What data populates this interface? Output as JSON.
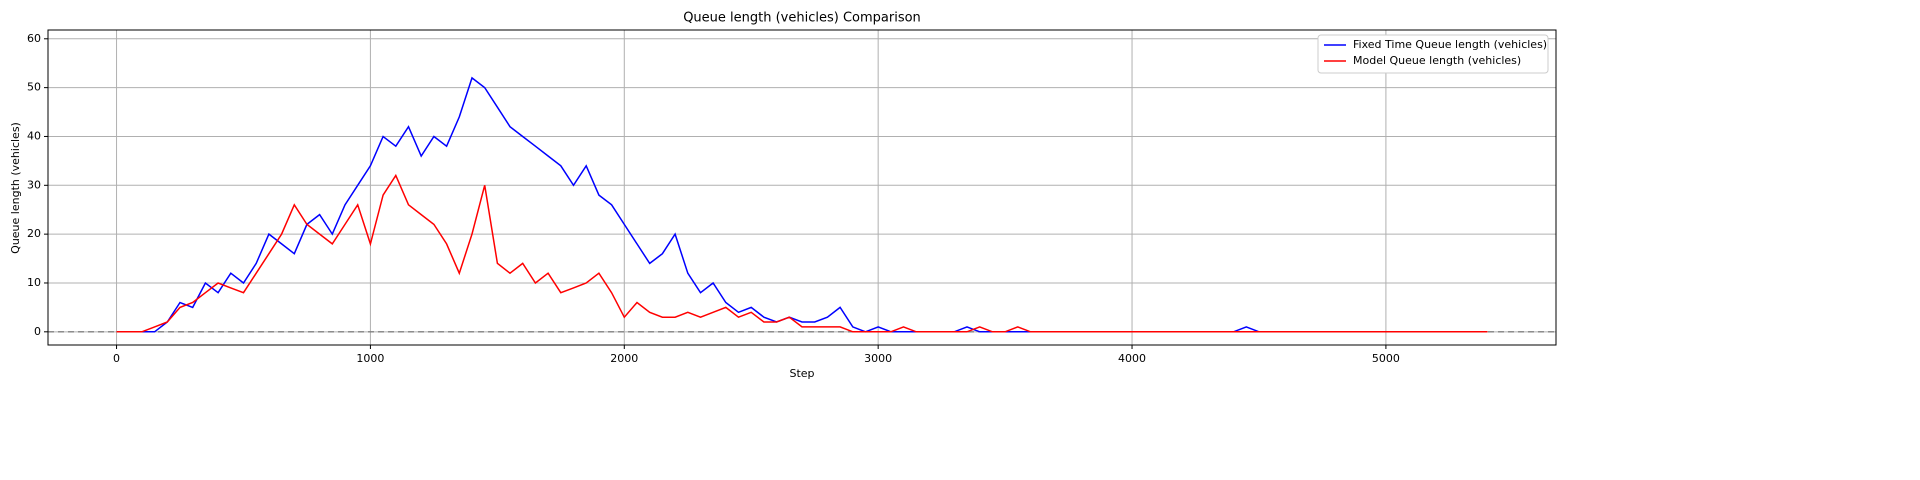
{
  "chart_data": {
    "type": "line",
    "title": "Queue length (vehicles) Comparison",
    "x_label": "Step",
    "y_label": "Queue length (vehicles)",
    "x": [
      0,
      50,
      100,
      150,
      200,
      250,
      300,
      350,
      400,
      450,
      500,
      550,
      600,
      650,
      700,
      750,
      800,
      850,
      900,
      950,
      1000,
      1050,
      1100,
      1150,
      1200,
      1250,
      1300,
      1350,
      1400,
      1450,
      1500,
      1550,
      1600,
      1650,
      1700,
      1750,
      1800,
      1850,
      1900,
      1950,
      2000,
      2050,
      2100,
      2150,
      2200,
      2250,
      2300,
      2350,
      2400,
      2450,
      2500,
      2550,
      2600,
      2650,
      2700,
      2750,
      2800,
      2850,
      2900,
      2950,
      3000,
      3050,
      3100,
      3150,
      3200,
      3250,
      3300,
      3350,
      3400,
      3450,
      3500,
      3550,
      3600,
      3650,
      3700,
      3750,
      3800,
      3850,
      3900,
      3950,
      4000,
      4050,
      4100,
      4150,
      4200,
      4250,
      4300,
      4350,
      4400,
      4450,
      4500,
      4550,
      4600,
      4650,
      4700,
      4750,
      4800,
      4850,
      4900,
      4950,
      5000,
      5050,
      5100,
      5150,
      5200,
      5250,
      5300,
      5350,
      5400
    ],
    "series": [
      {
        "name": "Fixed Time Queue length (vehicles)",
        "color": "#0000ff",
        "values": [
          0,
          0,
          0,
          0,
          2,
          6,
          5,
          10,
          8,
          12,
          10,
          14,
          20,
          18,
          16,
          22,
          24,
          20,
          26,
          30,
          34,
          40,
          38,
          42,
          36,
          40,
          38,
          44,
          52,
          50,
          46,
          42,
          40,
          38,
          36,
          34,
          30,
          34,
          28,
          26,
          22,
          18,
          14,
          16,
          20,
          12,
          8,
          10,
          6,
          4,
          5,
          3,
          2,
          3,
          2,
          2,
          3,
          5,
          1,
          0,
          1,
          0,
          0,
          0,
          0,
          0,
          0,
          1,
          0,
          0,
          0,
          0,
          0,
          0,
          0,
          0,
          0,
          0,
          0,
          0,
          0,
          0,
          0,
          0,
          0,
          0,
          0,
          0,
          0,
          1,
          0,
          0,
          0,
          0,
          0,
          0,
          0,
          0,
          0,
          0,
          0,
          0,
          0,
          0,
          0,
          0,
          0,
          0,
          0
        ]
      },
      {
        "name": "Model Queue length (vehicles)",
        "color": "#ff0000",
        "values": [
          0,
          0,
          0,
          1,
          2,
          5,
          6,
          8,
          10,
          9,
          8,
          12,
          16,
          20,
          26,
          22,
          20,
          18,
          22,
          26,
          18,
          28,
          32,
          26,
          24,
          22,
          18,
          12,
          20,
          30,
          14,
          12,
          14,
          10,
          12,
          8,
          9,
          10,
          12,
          8,
          3,
          6,
          4,
          3,
          3,
          4,
          3,
          4,
          5,
          3,
          4,
          2,
          2,
          3,
          1,
          1,
          1,
          1,
          0,
          0,
          0,
          0,
          1,
          0,
          0,
          0,
          0,
          0,
          1,
          0,
          0,
          1,
          0,
          0,
          0,
          0,
          0,
          0,
          0,
          0,
          0,
          0,
          0,
          0,
          0,
          0,
          0,
          0,
          0,
          0,
          0,
          0,
          0,
          0,
          0,
          0,
          0,
          0,
          0,
          0,
          0,
          0,
          0,
          0,
          0,
          0,
          0,
          0,
          0
        ]
      }
    ],
    "xlim": [
      -270,
      5670
    ],
    "ylim": [
      -2.7,
      61.8
    ],
    "xticks": [
      0,
      1000,
      2000,
      3000,
      4000,
      5000
    ],
    "yticks": [
      0,
      10,
      20,
      30,
      40,
      50,
      60
    ],
    "hline": 0,
    "grid": true,
    "legend": "upper right"
  }
}
